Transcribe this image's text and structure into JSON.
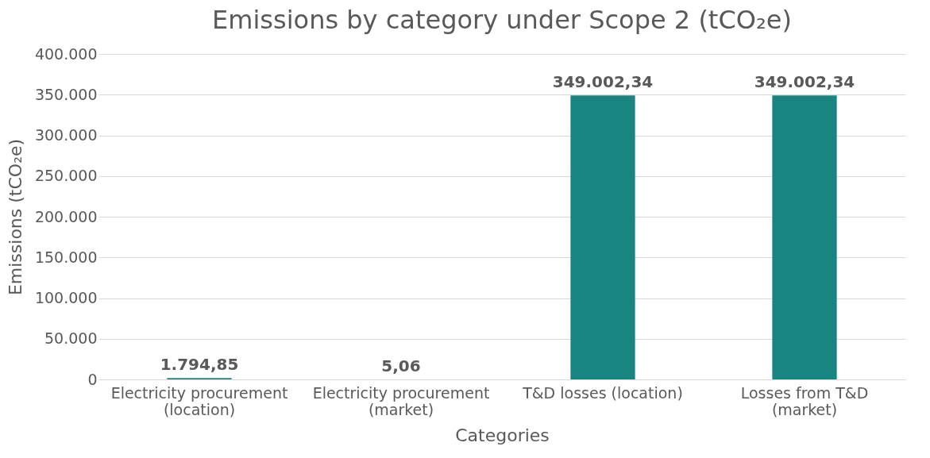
{
  "chart_data": {
    "type": "bar",
    "title": "Emissions by category under Scope 2 (tCO₂e)",
    "xlabel": "Categories",
    "ylabel": "Emissions (tCO₂e)",
    "categories": [
      "Electricity procurement\n(location)",
      "Electricity procurement\n(market)",
      "T&D losses (location)",
      "Losses from T&D\n(market)"
    ],
    "values": [
      1794.85,
      5.06,
      349002.34,
      349002.34
    ],
    "value_labels": [
      "1.794,85",
      "5,06",
      "349.002,34",
      "349.002,34"
    ],
    "color": "#1a8580",
    "ylim": [
      0,
      400000
    ],
    "yticks": [
      {
        "value": 0,
        "label": "0"
      },
      {
        "value": 50000,
        "label": "50.000"
      },
      {
        "value": 100000,
        "label": "100.000"
      },
      {
        "value": 150000,
        "label": "150.000"
      },
      {
        "value": 200000,
        "label": "200.000"
      },
      {
        "value": 250000,
        "label": "250.000"
      },
      {
        "value": 300000,
        "label": "300.000"
      },
      {
        "value": 350000,
        "label": "350.000"
      },
      {
        "value": 400000,
        "label": "400.000"
      }
    ],
    "grid": "y"
  }
}
